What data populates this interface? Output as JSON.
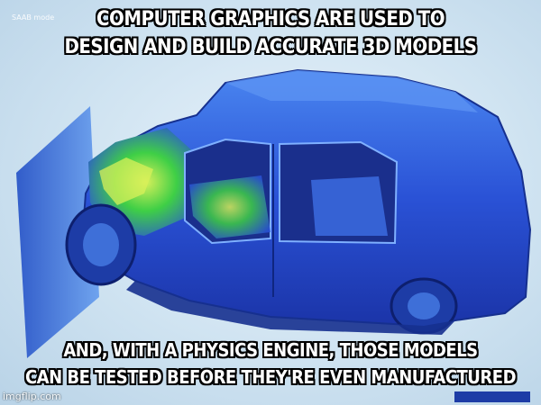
{
  "meme": {
    "top_caption": [
      "COMPUTER GRAPHICS ARE USED TO",
      "DESIGN AND BUILD ACCURATE 3D MODELS"
    ],
    "bottom_caption": [
      "AND, WITH A PHYSICS ENGINE, THOSE MODELS",
      "CAN BE TESTED BEFORE THEY'RE EVEN MANUFACTURED"
    ],
    "brand_label": "SAAB mode",
    "watermark": "imgflip.com"
  },
  "colors": {
    "car_body": "#2a52d6",
    "car_highlight": "#4a86f0",
    "stress_green": "#3fcf46",
    "stress_yellow": "#d8f05a",
    "barrier": "#3e6fd8",
    "caption_text": "#ffffff",
    "caption_outline": "#000000"
  }
}
